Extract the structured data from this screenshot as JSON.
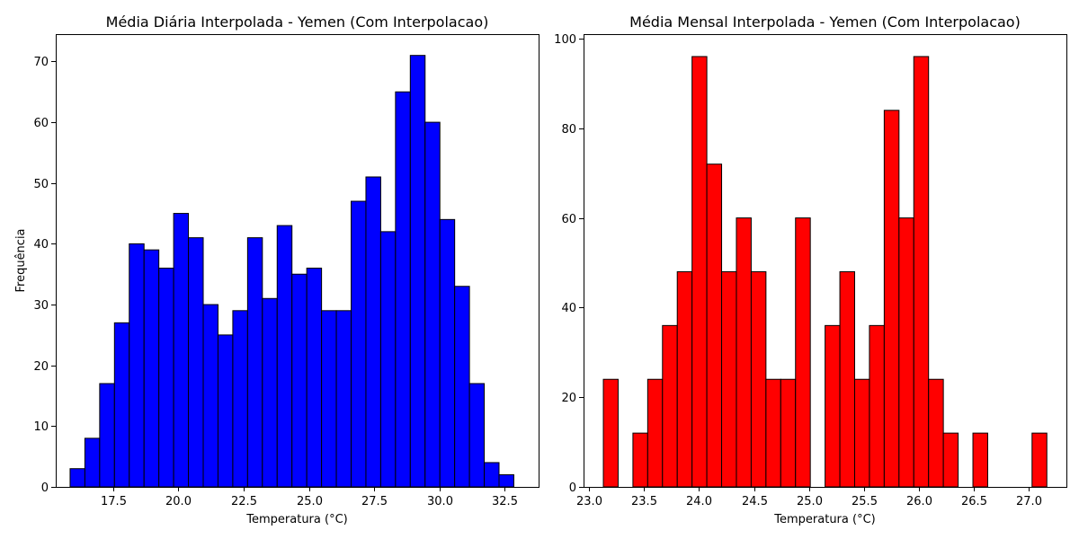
{
  "chart_data": [
    {
      "type": "bar",
      "title": "Média Diária Interpolada - Yemen (Com Interpolacao)",
      "xlabel": "Temperatura (°C)",
      "ylabel": "Frequência",
      "color": "#0000ff",
      "xlim": [
        15.3,
        33.8
      ],
      "ylim": [
        0,
        74.5
      ],
      "xticks": [
        17.5,
        20.0,
        22.5,
        25.0,
        27.5,
        30.0,
        32.5
      ],
      "xtick_labels": [
        "17.5",
        "20.0",
        "22.5",
        "25.0",
        "27.5",
        "30.0",
        "32.5"
      ],
      "yticks": [
        0,
        10,
        20,
        30,
        40,
        50,
        60,
        70
      ],
      "ytick_labels": [
        "0",
        "10",
        "20",
        "30",
        "40",
        "50",
        "60",
        "70"
      ],
      "bin_start": 15.85,
      "bin_width": 0.5667,
      "values": [
        3,
        8,
        17,
        27,
        40,
        39,
        36,
        45,
        41,
        30,
        25,
        29,
        41,
        31,
        43,
        35,
        36,
        29,
        29,
        47,
        51,
        42,
        65,
        71,
        60,
        44,
        33,
        17,
        4,
        2
      ],
      "grid": false,
      "legend": "none"
    },
    {
      "type": "bar",
      "title": "Média Mensal Interpolada - Yemen (Com Interpolacao)",
      "xlabel": "Temperatura (°C)",
      "ylabel": "",
      "color": "#ff0000",
      "xlim": [
        22.95,
        27.34
      ],
      "ylim": [
        0,
        101
      ],
      "xticks": [
        23.0,
        23.5,
        24.0,
        24.5,
        25.0,
        25.5,
        26.0,
        26.5,
        27.0
      ],
      "xtick_labels": [
        "23.0",
        "23.5",
        "24.0",
        "24.5",
        "25.0",
        "25.5",
        "26.0",
        "26.5",
        "27.0"
      ],
      "yticks": [
        0,
        20,
        40,
        60,
        80,
        100
      ],
      "ytick_labels": [
        "0",
        "20",
        "40",
        "60",
        "80",
        "100"
      ],
      "bin_start": 23.13,
      "bin_width": 0.1344,
      "values": [
        24,
        0,
        12,
        24,
        36,
        48,
        96,
        72,
        48,
        60,
        48,
        24,
        24,
        60,
        0,
        36,
        48,
        24,
        36,
        84,
        60,
        96,
        24,
        12,
        0,
        12,
        0,
        0,
        0,
        12
      ],
      "grid": false,
      "legend": "none"
    }
  ]
}
